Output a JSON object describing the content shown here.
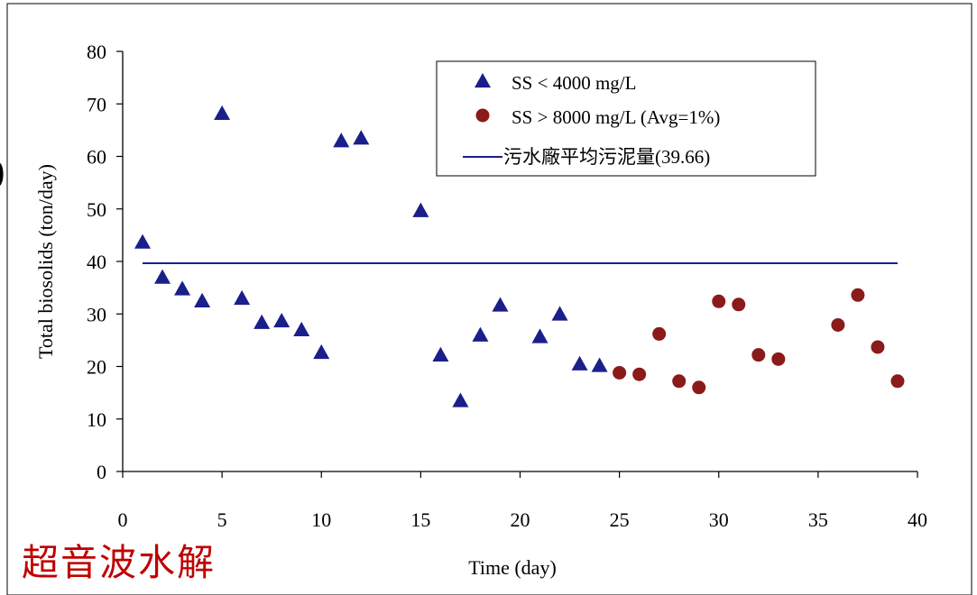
{
  "caption": "超音波水解",
  "edge_glyph": ")",
  "colors": {
    "series_triangle": "#1a1f8a",
    "series_circle": "#8b1a1a",
    "average_line": "#1a1f8a",
    "caption": "#c00000"
  },
  "chart_data": {
    "type": "scatter",
    "title": "",
    "xlabel": "Time (day)",
    "ylabel": "Total biosolids (ton/day)",
    "xlim": [
      0,
      40
    ],
    "ylim": [
      0,
      80
    ],
    "xticks": [
      0,
      5,
      10,
      15,
      20,
      25,
      30,
      35,
      40
    ],
    "yticks": [
      0,
      10,
      20,
      30,
      40,
      50,
      60,
      70,
      80
    ],
    "grid": false,
    "legend_position": "top-right",
    "series": [
      {
        "name": "SS < 4000 mg/L",
        "marker": "triangle",
        "points": [
          [
            1,
            43.5
          ],
          [
            2,
            36.8
          ],
          [
            3,
            34.6
          ],
          [
            4,
            32.3
          ],
          [
            5,
            68
          ],
          [
            6,
            32.8
          ],
          [
            7,
            28.2
          ],
          [
            8,
            28.5
          ],
          [
            9,
            26.8
          ],
          [
            10,
            22.5
          ],
          [
            11,
            62.8
          ],
          [
            12,
            63.3
          ],
          [
            15,
            49.5
          ],
          [
            16,
            22
          ],
          [
            17,
            13.3
          ],
          [
            18,
            25.8
          ],
          [
            19,
            31.5
          ],
          [
            21,
            25.5
          ],
          [
            22,
            29.8
          ],
          [
            23,
            20.3
          ],
          [
            24,
            20
          ]
        ]
      },
      {
        "name": "SS > 8000 mg/L (Avg=1%)",
        "marker": "circle",
        "points": [
          [
            25,
            18.8
          ],
          [
            26,
            18.5
          ],
          [
            27,
            26.2
          ],
          [
            28,
            17.2
          ],
          [
            29,
            16
          ],
          [
            30,
            32.4
          ],
          [
            31,
            31.8
          ],
          [
            32,
            22.2
          ],
          [
            33,
            21.4
          ],
          [
            36,
            27.9
          ],
          [
            37,
            33.6
          ],
          [
            38,
            23.7
          ],
          [
            39,
            17.2
          ]
        ]
      },
      {
        "name": "污水廠平均污泥量(39.66)",
        "marker": "line",
        "points": [
          [
            1,
            39.66
          ],
          [
            39,
            39.66
          ]
        ]
      }
    ]
  }
}
